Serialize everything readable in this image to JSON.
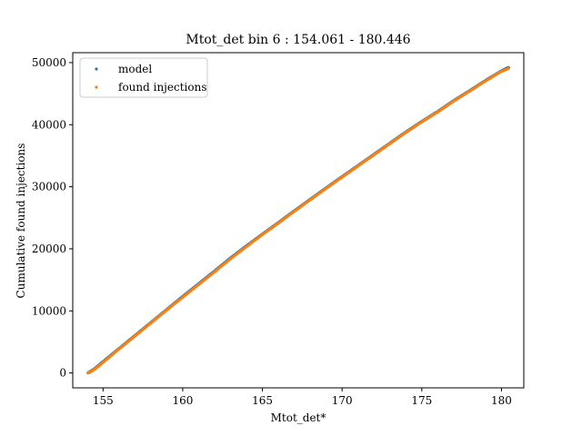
{
  "chart_data": {
    "type": "scatter",
    "title": "Mtot_det bin 6 : 154.061 - 180.446",
    "xlabel": "Mtot_det*",
    "ylabel": "Cumulative found injections",
    "xlim": [
      153.1,
      181.4
    ],
    "ylim": [
      -2400,
      51600
    ],
    "x_ticks": [
      155,
      160,
      165,
      170,
      175,
      180
    ],
    "x_tick_labels": [
      "155",
      "160",
      "165",
      "170",
      "175",
      "180"
    ],
    "y_ticks": [
      0,
      10000,
      20000,
      30000,
      40000,
      50000
    ],
    "y_tick_labels": [
      "0",
      "10000",
      "20000",
      "30000",
      "40000",
      "50000"
    ],
    "grid": false,
    "legend_position": "top-left",
    "series": [
      {
        "name": "model",
        "color": "#1f77b4",
        "x": [
          154.061,
          154.5,
          155.0,
          156.0,
          157.0,
          158.0,
          159.0,
          160.0,
          161.0,
          162.0,
          163.0,
          164.0,
          165.0,
          166.0,
          167.0,
          168.0,
          169.0,
          170.0,
          171.0,
          172.0,
          173.0,
          174.0,
          175.0,
          176.0,
          177.0,
          178.0,
          179.0,
          180.0,
          180.446
        ],
        "y": [
          0,
          700,
          1800,
          3900,
          6000,
          8100,
          10200,
          12300,
          14350,
          16400,
          18500,
          20450,
          22350,
          24200,
          26100,
          27950,
          29800,
          31600,
          33400,
          35200,
          37000,
          38800,
          40500,
          42100,
          43850,
          45450,
          47100,
          48650,
          49200
        ]
      },
      {
        "name": "found injections",
        "color": "#ff7f0e",
        "x": [
          154.061,
          154.5,
          155.0,
          156.0,
          157.0,
          158.0,
          159.0,
          160.0,
          161.0,
          162.0,
          163.0,
          164.0,
          165.0,
          166.0,
          167.0,
          168.0,
          169.0,
          170.0,
          171.0,
          172.0,
          173.0,
          174.0,
          175.0,
          176.0,
          177.0,
          178.0,
          179.0,
          180.0,
          180.446
        ],
        "y": [
          0,
          650,
          1700,
          3850,
          5950,
          8050,
          10150,
          12200,
          14250,
          16300,
          18400,
          20350,
          22300,
          24150,
          26050,
          27900,
          29750,
          31550,
          33350,
          35150,
          36950,
          38750,
          40450,
          42050,
          43800,
          45400,
          47050,
          48600,
          49050
        ]
      }
    ]
  }
}
